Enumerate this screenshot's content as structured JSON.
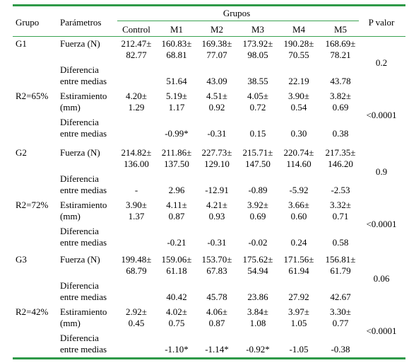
{
  "header": {
    "grupo": "Grupo",
    "parametros": "Parámetros",
    "grupos": "Grupos",
    "pvalor": "P valor",
    "cols": [
      "Control",
      "M1",
      "M2",
      "M3",
      "M4",
      "M5"
    ]
  },
  "blocks": [
    {
      "group": "G1",
      "r2": "R2=65%",
      "rows": [
        {
          "param": [
            "Fuerza (N)"
          ],
          "cells": [
            [
              "212.47±",
              "82.77"
            ],
            [
              "160.83±",
              "68.81"
            ],
            [
              "169.38±",
              "77.07"
            ],
            [
              "173.92±",
              "98.05"
            ],
            [
              "190.28±",
              "70.55"
            ],
            [
              "168.69±",
              "78.21"
            ]
          ]
        },
        {
          "param": [
            "Diferencia",
            "entre medias"
          ],
          "cells": [
            [
              ""
            ],
            [
              "51.64"
            ],
            [
              "43.09"
            ],
            [
              "38.55"
            ],
            [
              "22.19"
            ],
            [
              "43.78"
            ]
          ]
        },
        {
          "param": [
            "Estiramiento",
            "(mm)"
          ],
          "cells": [
            [
              "4.20±",
              "1.29"
            ],
            [
              "5.19±",
              "1.17"
            ],
            [
              "4.51±",
              "0.92"
            ],
            [
              "4.05±",
              "0.72"
            ],
            [
              "3.90±",
              "0.54"
            ],
            [
              "3.82±",
              "0.69"
            ]
          ]
        },
        {
          "param": [
            "Diferencia",
            "entre medias"
          ],
          "cells": [
            [
              ""
            ],
            [
              "-0.99*"
            ],
            [
              "-0.31"
            ],
            [
              "0.15"
            ],
            [
              "0.30"
            ],
            [
              "0.38"
            ]
          ]
        }
      ],
      "p1": "0.2",
      "p2": "<0.0001"
    },
    {
      "group": "G2",
      "r2": "R2=72%",
      "rows": [
        {
          "param": [
            "Fuerza (N)"
          ],
          "cells": [
            [
              "214.82±",
              "136.00"
            ],
            [
              "211.86±",
              "137.50"
            ],
            [
              "227.73±",
              "129.10"
            ],
            [
              "215.71±",
              "147.50"
            ],
            [
              "220.74±",
              "114.60"
            ],
            [
              "217.35±",
              "146.20"
            ]
          ]
        },
        {
          "param": [
            "Diferencia",
            "entre medias"
          ],
          "cells": [
            [
              "-"
            ],
            [
              "2.96"
            ],
            [
              "-12.91"
            ],
            [
              "-0.89"
            ],
            [
              "-5.92"
            ],
            [
              "-2.53"
            ]
          ]
        },
        {
          "param": [
            "Estiramiento",
            "(mm)"
          ],
          "cells": [
            [
              "3.90±",
              "1.37"
            ],
            [
              "4.11±",
              "0.87"
            ],
            [
              "4.21±",
              "0.93"
            ],
            [
              "3.92±",
              "0.69"
            ],
            [
              "3.66±",
              "0.60"
            ],
            [
              "3.32±",
              "0.71"
            ]
          ]
        },
        {
          "param": [
            "Diferencia",
            "entre medias"
          ],
          "cells": [
            [
              ""
            ],
            [
              "-0.21"
            ],
            [
              "-0.31"
            ],
            [
              "-0.02"
            ],
            [
              "0.24"
            ],
            [
              "0.58"
            ]
          ]
        }
      ],
      "p1": "0.9",
      "p2": "<0.0001"
    },
    {
      "group": "G3",
      "r2": "R2=42%",
      "rows": [
        {
          "param": [
            "Fuerza (N)"
          ],
          "cells": [
            [
              "199.48±",
              "68.79"
            ],
            [
              "159.06±",
              "61.18"
            ],
            [
              "153.70±",
              "67.83"
            ],
            [
              "175.62±",
              "54.94"
            ],
            [
              "171.56±",
              "61.94"
            ],
            [
              "156.81±",
              "61.79"
            ]
          ]
        },
        {
          "param": [
            "Diferencia",
            "entre medias"
          ],
          "cells": [
            [
              ""
            ],
            [
              "40.42"
            ],
            [
              "45.78"
            ],
            [
              "23.86"
            ],
            [
              "27.92"
            ],
            [
              "42.67"
            ]
          ]
        },
        {
          "param": [
            "Estiramiento",
            "(mm)"
          ],
          "cells": [
            [
              "2.92±",
              "0.45"
            ],
            [
              "4.02±",
              "0.75"
            ],
            [
              "4.06±",
              "0.87"
            ],
            [
              "3.84±",
              "1.08"
            ],
            [
              "3.97±",
              "1.05"
            ],
            [
              "3.30±",
              "0.77"
            ]
          ]
        },
        {
          "param": [
            "Diferencia",
            "entre medias"
          ],
          "cells": [
            [
              ""
            ],
            [
              "-1.10*"
            ],
            [
              "-1.14*"
            ],
            [
              "-0.92*"
            ],
            [
              "-1.05"
            ],
            [
              "-0.38"
            ]
          ]
        }
      ],
      "p1": "0.06",
      "p2": "<0.0001"
    }
  ]
}
